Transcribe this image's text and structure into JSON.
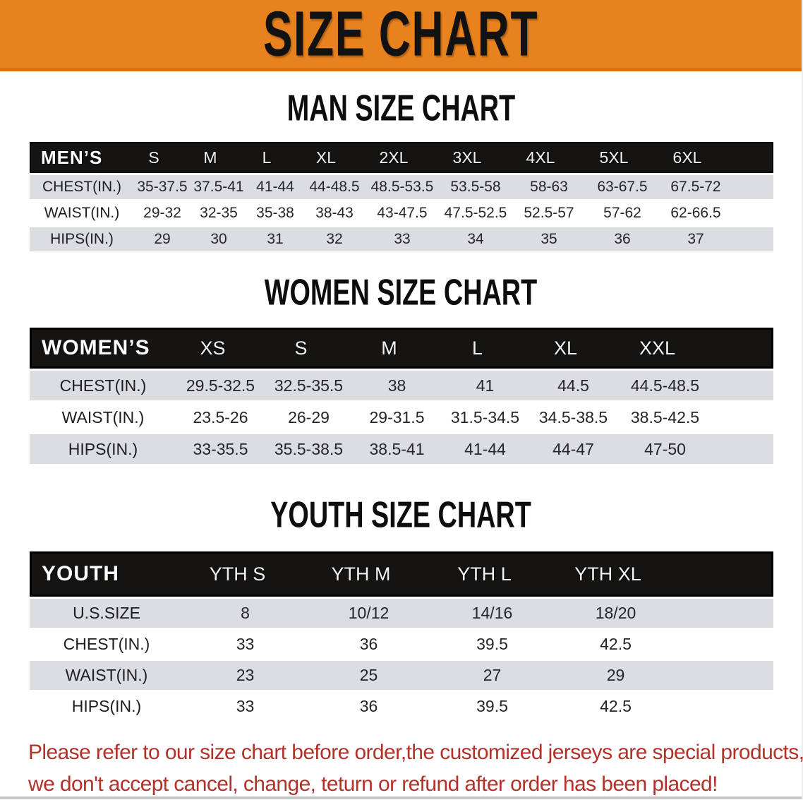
{
  "banner": {
    "title": "SIZE CHART"
  },
  "colors": {
    "banner": "#E8821E",
    "banner_edge": "#D9730F",
    "header": "#151413",
    "row_alt": "#DCDDE0",
    "text": "#26262A",
    "disclaimer": "#B2322A"
  },
  "sections": [
    {
      "heading": "MAN SIZE CHART",
      "label": "MEN’S",
      "columns": [
        "S",
        "M",
        "L",
        "XL",
        "2XL",
        "3XL",
        "4XL",
        "5XL",
        "6XL"
      ],
      "rows": [
        {
          "label": "CHEST(IN.)",
          "values": [
            "35-37.5",
            "37.5-41",
            "41-44",
            "44-48.5",
            "48.5-53.5",
            "53.5-58",
            "58-63",
            "63-67.5",
            "67.5-72"
          ]
        },
        {
          "label": "WAIST(IN.)",
          "values": [
            "29-32",
            "32-35",
            "35-38",
            "38-43",
            "43-47.5",
            "47.5-52.5",
            "52.5-57",
            "57-62",
            "62-66.5"
          ]
        },
        {
          "label": "HIPS(IN.)",
          "values": [
            "29",
            "30",
            "31",
            "32",
            "33",
            "34",
            "35",
            "36",
            "37"
          ]
        }
      ]
    },
    {
      "heading": "WOMEN SIZE CHART",
      "label": "WOMEN’S",
      "columns": [
        "XS",
        "S",
        "M",
        "L",
        "XL",
        "XXL"
      ],
      "rows": [
        {
          "label": "CHEST(IN.)",
          "values": [
            "29.5-32.5",
            "32.5-35.5",
            "38",
            "41",
            "44.5",
            "44.5-48.5"
          ]
        },
        {
          "label": "WAIST(IN.)",
          "values": [
            "23.5-26",
            "26-29",
            "29-31.5",
            "31.5-34.5",
            "34.5-38.5",
            "38.5-42.5"
          ]
        },
        {
          "label": "HIPS(IN.)",
          "values": [
            "33-35.5",
            "35.5-38.5",
            "38.5-41",
            "41-44",
            "44-47",
            "47-50"
          ]
        }
      ]
    },
    {
      "heading": "YOUTH SIZE CHART",
      "label": "YOUTH",
      "columns": [
        "YTH S",
        "YTH M",
        "YTH L",
        "YTH XL"
      ],
      "rows": [
        {
          "label": "U.S.SIZE",
          "values": [
            "8",
            "10/12",
            "14/16",
            "18/20"
          ]
        },
        {
          "label": "CHEST(IN.)",
          "values": [
            "33",
            "36",
            "39.5",
            "42.5"
          ]
        },
        {
          "label": "WAIST(IN.)",
          "values": [
            "23",
            "25",
            "27",
            "29"
          ]
        },
        {
          "label": "HIPS(IN.)",
          "values": [
            "33",
            "36",
            "39.5",
            "42.5"
          ]
        }
      ]
    }
  ],
  "disclaimer": {
    "line1": "Please refer to our size chart before order,the customized jerseys are special products,",
    "line2": "we don't accept cancel, change, teturn or refund after order has been placed!"
  }
}
